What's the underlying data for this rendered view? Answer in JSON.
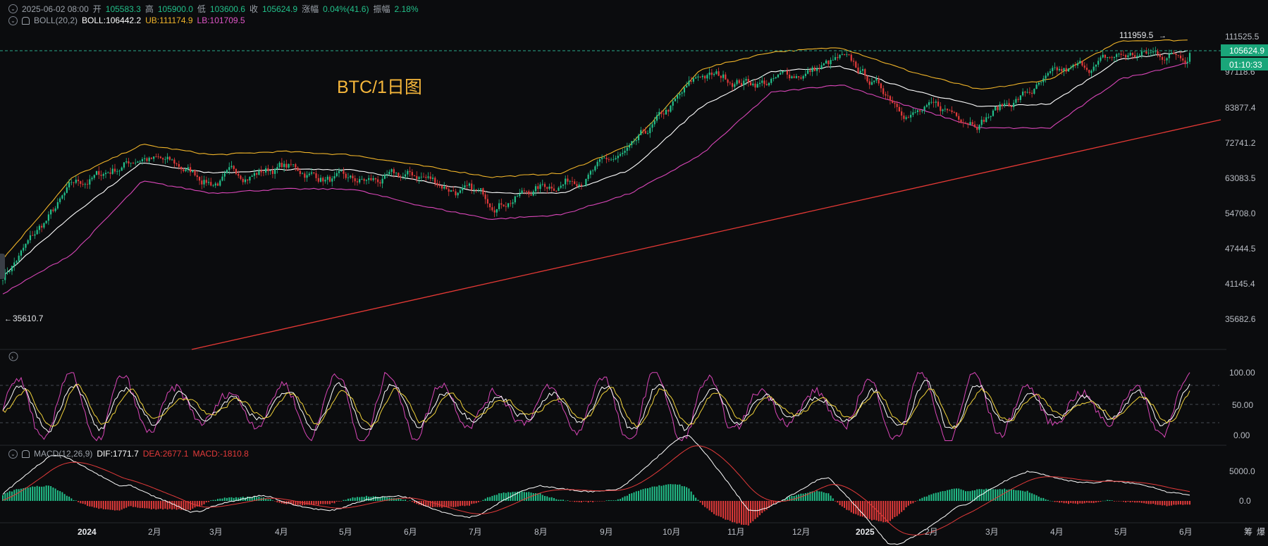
{
  "header": {
    "ohlc_line": {
      "datetime": "2025-06-02 08:00",
      "open_label": "开",
      "open": "105583.3",
      "high_label": "高",
      "high": "105900.0",
      "low_label": "低",
      "low": "103600.6",
      "close_label": "收",
      "close": "105624.9",
      "change_label": "涨幅",
      "change": "0.04%(41.6)",
      "amplitude_label": "振幅",
      "amplitude": "2.18%"
    },
    "boll_line": {
      "name": "BOLL(20,2)",
      "boll": "BOLL:106442.2",
      "ub": "UB:111174.9",
      "lb": "LB:101709.5"
    }
  },
  "overlay_title": "BTC/1日图",
  "price_panel": {
    "axis_ticks": [
      "111525.5",
      "97118.6",
      "83877.4",
      "72741.2",
      "63083.5",
      "54708.0",
      "47444.5",
      "41145.4",
      "35682.6"
    ],
    "current_price": "105624.9",
    "countdown": "01:10:33",
    "high_annotation": "111959.5",
    "low_annotation": "35610.7"
  },
  "kdj_panel": {
    "axis_ticks": [
      "100.00",
      "50.00",
      "0.00"
    ]
  },
  "macd_panel": {
    "name": "MACD(12,26,9)",
    "dif": "DIF:1771.7",
    "dea": "DEA:2677.1",
    "macd": "MACD:-1810.8",
    "axis_ticks": [
      "5000.0",
      "0.0"
    ]
  },
  "x_axis": {
    "labels": [
      "2024",
      "2月",
      "3月",
      "4月",
      "5月",
      "6月",
      "7月",
      "8月",
      "9月",
      "10月",
      "11月",
      "12月",
      "2025",
      "2月",
      "3月",
      "4月",
      "5月",
      "6月"
    ],
    "right_tools": [
      "筹",
      "爆"
    ]
  },
  "colors": {
    "up": "#22c08a",
    "down": "#e23a3a",
    "boll_mid": "#ffffff",
    "boll_up": "#f0b429",
    "boll_low": "#d946b8",
    "trendline": "#e53935",
    "title": "#f5b63b",
    "price_tag": "#1aa67a"
  },
  "chart_data": [
    {
      "type": "candlestick",
      "title": "BTC/1日图",
      "x": [
        "2024-01",
        "2024-02",
        "2024-03",
        "2024-04",
        "2024-05",
        "2024-06",
        "2024-07",
        "2024-08",
        "2024-09",
        "2024-10",
        "2024-11",
        "2024-12",
        "2025-01",
        "2025-02",
        "2025-03",
        "2025-04",
        "2025-05",
        "2025-06"
      ],
      "close_approx": [
        43000,
        61000,
        70000,
        63000,
        67000,
        62000,
        64000,
        58000,
        63000,
        70000,
        96000,
        94000,
        102000,
        84000,
        82000,
        94000,
        104000,
        105624.9
      ],
      "boll_upper_approx": [
        46000,
        64000,
        73000,
        70000,
        71000,
        70000,
        67000,
        64000,
        65000,
        73000,
        99000,
        106000,
        108000,
        98000,
        91000,
        95000,
        111000,
        111174.9
      ],
      "boll_mid_approx": [
        43000,
        55000,
        68000,
        65000,
        66000,
        66000,
        63000,
        60000,
        60000,
        66000,
        85000,
        98000,
        100000,
        91000,
        85000,
        86000,
        103000,
        106442.2
      ],
      "boll_lower_approx": [
        40000,
        47000,
        63000,
        60000,
        61000,
        61000,
        57000,
        54000,
        55000,
        60000,
        70000,
        90000,
        93000,
        85000,
        78000,
        78000,
        95000,
        101709.5
      ],
      "y_scale": "log",
      "ylim": [
        33000,
        118000
      ],
      "current": 105624.9,
      "high_marker": 111959.5,
      "low_marker": 35610.7
    },
    {
      "type": "line",
      "series": [
        {
          "name": "K"
        },
        {
          "name": "D"
        },
        {
          "name": "J"
        }
      ],
      "ylim": [
        0,
        100
      ],
      "guides": [
        20,
        50,
        80
      ]
    },
    {
      "type": "bar",
      "title": "MACD(12,26,9)",
      "series": [
        {
          "name": "DIF",
          "last": 1771.7
        },
        {
          "name": "DEA",
          "last": 2677.1
        },
        {
          "name": "MACD",
          "last": -1810.8
        }
      ],
      "ylim": [
        -3500,
        7500
      ]
    }
  ]
}
